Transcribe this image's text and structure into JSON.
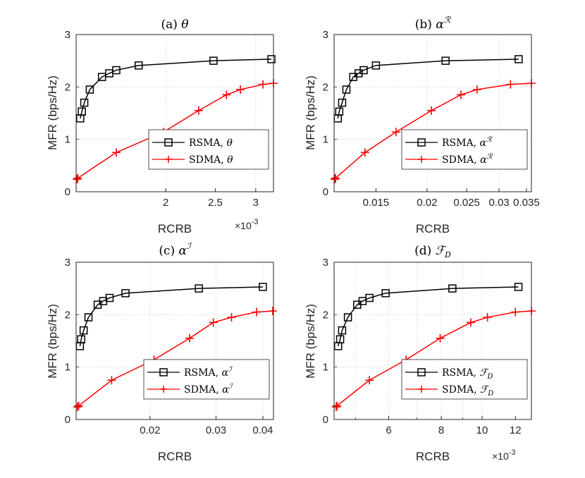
{
  "figure": {
    "ylabel_common": "MFR (bps/Hz)",
    "xlabel_common": "RCRB"
  },
  "chart_data": [
    {
      "type": "line",
      "title": "(a) θ",
      "xlabel": "RCRB",
      "ylabel": "MFR (bps/Hz)",
      "x_exponent_base": "×10",
      "x_exponent": "-3",
      "xscale": "log",
      "xlim": [
        1.335,
        3.25
      ],
      "ylim": [
        0,
        3
      ],
      "xticks": [
        2,
        2.5,
        3
      ],
      "xtick_labels": [
        "2",
        "2.5",
        "3"
      ],
      "yticks": [
        0,
        1,
        2,
        3
      ],
      "legend": [
        "RSMA, θ",
        "SDMA, θ"
      ],
      "series": [
        {
          "name": "RSMA, θ",
          "color": "#000000",
          "marker": "square",
          "x": [
            1.36,
            1.37,
            1.385,
            1.42,
            1.5,
            1.55,
            1.6,
            1.77,
            2.48,
            3.22
          ],
          "y": [
            1.4,
            1.53,
            1.7,
            1.95,
            2.19,
            2.26,
            2.32,
            2.41,
            2.5,
            2.53
          ]
        },
        {
          "name": "SDMA, θ",
          "color": "#ff0000",
          "marker": "plus",
          "x": [
            1.34,
            1.345,
            1.6,
            1.98,
            2.32,
            2.63,
            2.8,
            3.1,
            3.25
          ],
          "y": [
            0.24,
            0.26,
            0.75,
            1.14,
            1.55,
            1.85,
            1.95,
            2.05,
            2.07
          ]
        }
      ]
    },
    {
      "type": "line",
      "title": "(b) α^R",
      "xlabel": "RCRB",
      "ylabel": "MFR (bps/Hz)",
      "xscale": "log",
      "xlim": [
        0.01185,
        0.036
      ],
      "ylim": [
        0,
        3
      ],
      "xticks": [
        0.015,
        0.02,
        0.025,
        0.03,
        0.035
      ],
      "xtick_labels": [
        "0.015",
        "0.02",
        "0.025",
        "0.03",
        "0.035"
      ],
      "yticks": [
        0,
        1,
        2,
        3
      ],
      "legend": [
        "RSMA, α^R",
        "SDMA, α^R"
      ],
      "series": [
        {
          "name": "RSMA, α^R",
          "color": "#000000",
          "marker": "square",
          "x": [
            0.0121,
            0.0122,
            0.0124,
            0.0127,
            0.0132,
            0.0136,
            0.014,
            0.015,
            0.0222,
            0.0335
          ],
          "y": [
            1.4,
            1.53,
            1.7,
            1.95,
            2.19,
            2.26,
            2.32,
            2.41,
            2.5,
            2.53
          ]
        },
        {
          "name": "SDMA, α^R",
          "color": "#ff0000",
          "marker": "plus",
          "x": [
            0.0119,
            0.01195,
            0.0141,
            0.0168,
            0.0205,
            0.0242,
            0.0265,
            0.032,
            0.036
          ],
          "y": [
            0.24,
            0.26,
            0.75,
            1.14,
            1.55,
            1.85,
            1.95,
            2.05,
            2.07
          ]
        }
      ]
    },
    {
      "type": "line",
      "title": "(c) α^I",
      "xlabel": "RCRB",
      "ylabel": "MFR (bps/Hz)",
      "xscale": "log",
      "xlim": [
        0.0127,
        0.0427
      ],
      "ylim": [
        0,
        3
      ],
      "xticks": [
        0.02,
        0.03,
        0.04
      ],
      "xtick_labels": [
        "0.02",
        "0.03",
        "0.04"
      ],
      "yticks": [
        0,
        1,
        2,
        3
      ],
      "legend": [
        "RSMA, α^I",
        "SDMA, α^I"
      ],
      "series": [
        {
          "name": "RSMA, α^I",
          "color": "#000000",
          "marker": "square",
          "x": [
            0.013,
            0.0131,
            0.0133,
            0.0137,
            0.0145,
            0.015,
            0.0156,
            0.0172,
            0.027,
            0.04
          ],
          "y": [
            1.4,
            1.53,
            1.7,
            1.95,
            2.19,
            2.26,
            2.32,
            2.41,
            2.5,
            2.53
          ]
        },
        {
          "name": "SDMA, α^I",
          "color": "#ff0000",
          "marker": "plus",
          "x": [
            0.0128,
            0.0129,
            0.0158,
            0.0205,
            0.0255,
            0.0295,
            0.033,
            0.0385,
            0.0425
          ],
          "y": [
            0.24,
            0.26,
            0.75,
            1.14,
            1.55,
            1.85,
            1.95,
            2.05,
            2.07
          ]
        }
      ]
    },
    {
      "type": "line",
      "title": "(d) F_D",
      "xlabel": "RCRB",
      "ylabel": "MFR (bps/Hz)",
      "x_exponent_base": "×10",
      "x_exponent": "-3",
      "xscale": "log",
      "xlim": [
        4.45,
        13.1
      ],
      "ylim": [
        0,
        3
      ],
      "xticks": [
        6,
        8,
        10,
        12
      ],
      "xtick_labels": [
        "6",
        "8",
        "10",
        "12"
      ],
      "yticks": [
        0,
        1,
        2,
        3
      ],
      "legend": [
        "RSMA, F_D",
        "SDMA, F_D"
      ],
      "series": [
        {
          "name": "RSMA, F_D",
          "color": "#000000",
          "marker": "square",
          "x": [
            4.55,
            4.6,
            4.65,
            4.8,
            5.05,
            5.2,
            5.4,
            5.9,
            8.5,
            12.2
          ],
          "y": [
            1.4,
            1.53,
            1.7,
            1.95,
            2.19,
            2.26,
            2.32,
            2.41,
            2.5,
            2.53
          ]
        },
        {
          "name": "SDMA, F_D",
          "color": "#ff0000",
          "marker": "plus",
          "x": [
            4.5,
            4.52,
            5.4,
            6.6,
            7.95,
            9.4,
            10.3,
            12.0,
            13.1
          ],
          "y": [
            0.24,
            0.26,
            0.75,
            1.14,
            1.55,
            1.85,
            1.95,
            2.05,
            2.07
          ]
        }
      ]
    }
  ]
}
